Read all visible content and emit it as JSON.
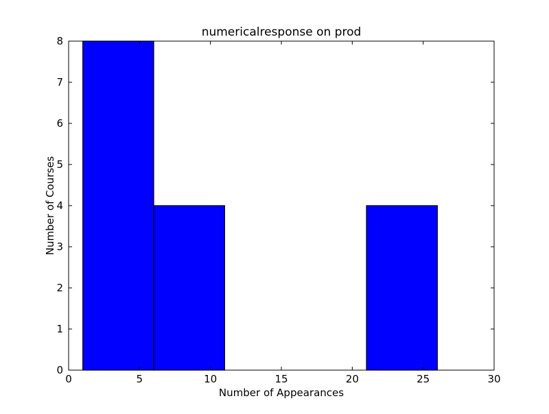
{
  "chart_data": {
    "type": "bar",
    "title": "numericalresponse on prod",
    "xlabel": "Number of Appearances",
    "ylabel": "Number of Courses",
    "xlim": [
      0,
      30
    ],
    "ylim": [
      0,
      8
    ],
    "xticks": [
      "0",
      "5",
      "10",
      "15",
      "20",
      "25",
      "30"
    ],
    "yticks": [
      "0",
      "1",
      "2",
      "3",
      "4",
      "5",
      "6",
      "7",
      "8"
    ],
    "bins": [
      {
        "x0": 1,
        "x1": 6,
        "value": 8
      },
      {
        "x0": 6,
        "x1": 11,
        "value": 4
      },
      {
        "x0": 11,
        "x1": 16,
        "value": 0
      },
      {
        "x0": 16,
        "x1": 21,
        "value": 0
      },
      {
        "x0": 21,
        "x1": 26,
        "value": 4
      }
    ],
    "bar_color": "#0000ff",
    "edge_color": "#000000",
    "grid": false
  }
}
